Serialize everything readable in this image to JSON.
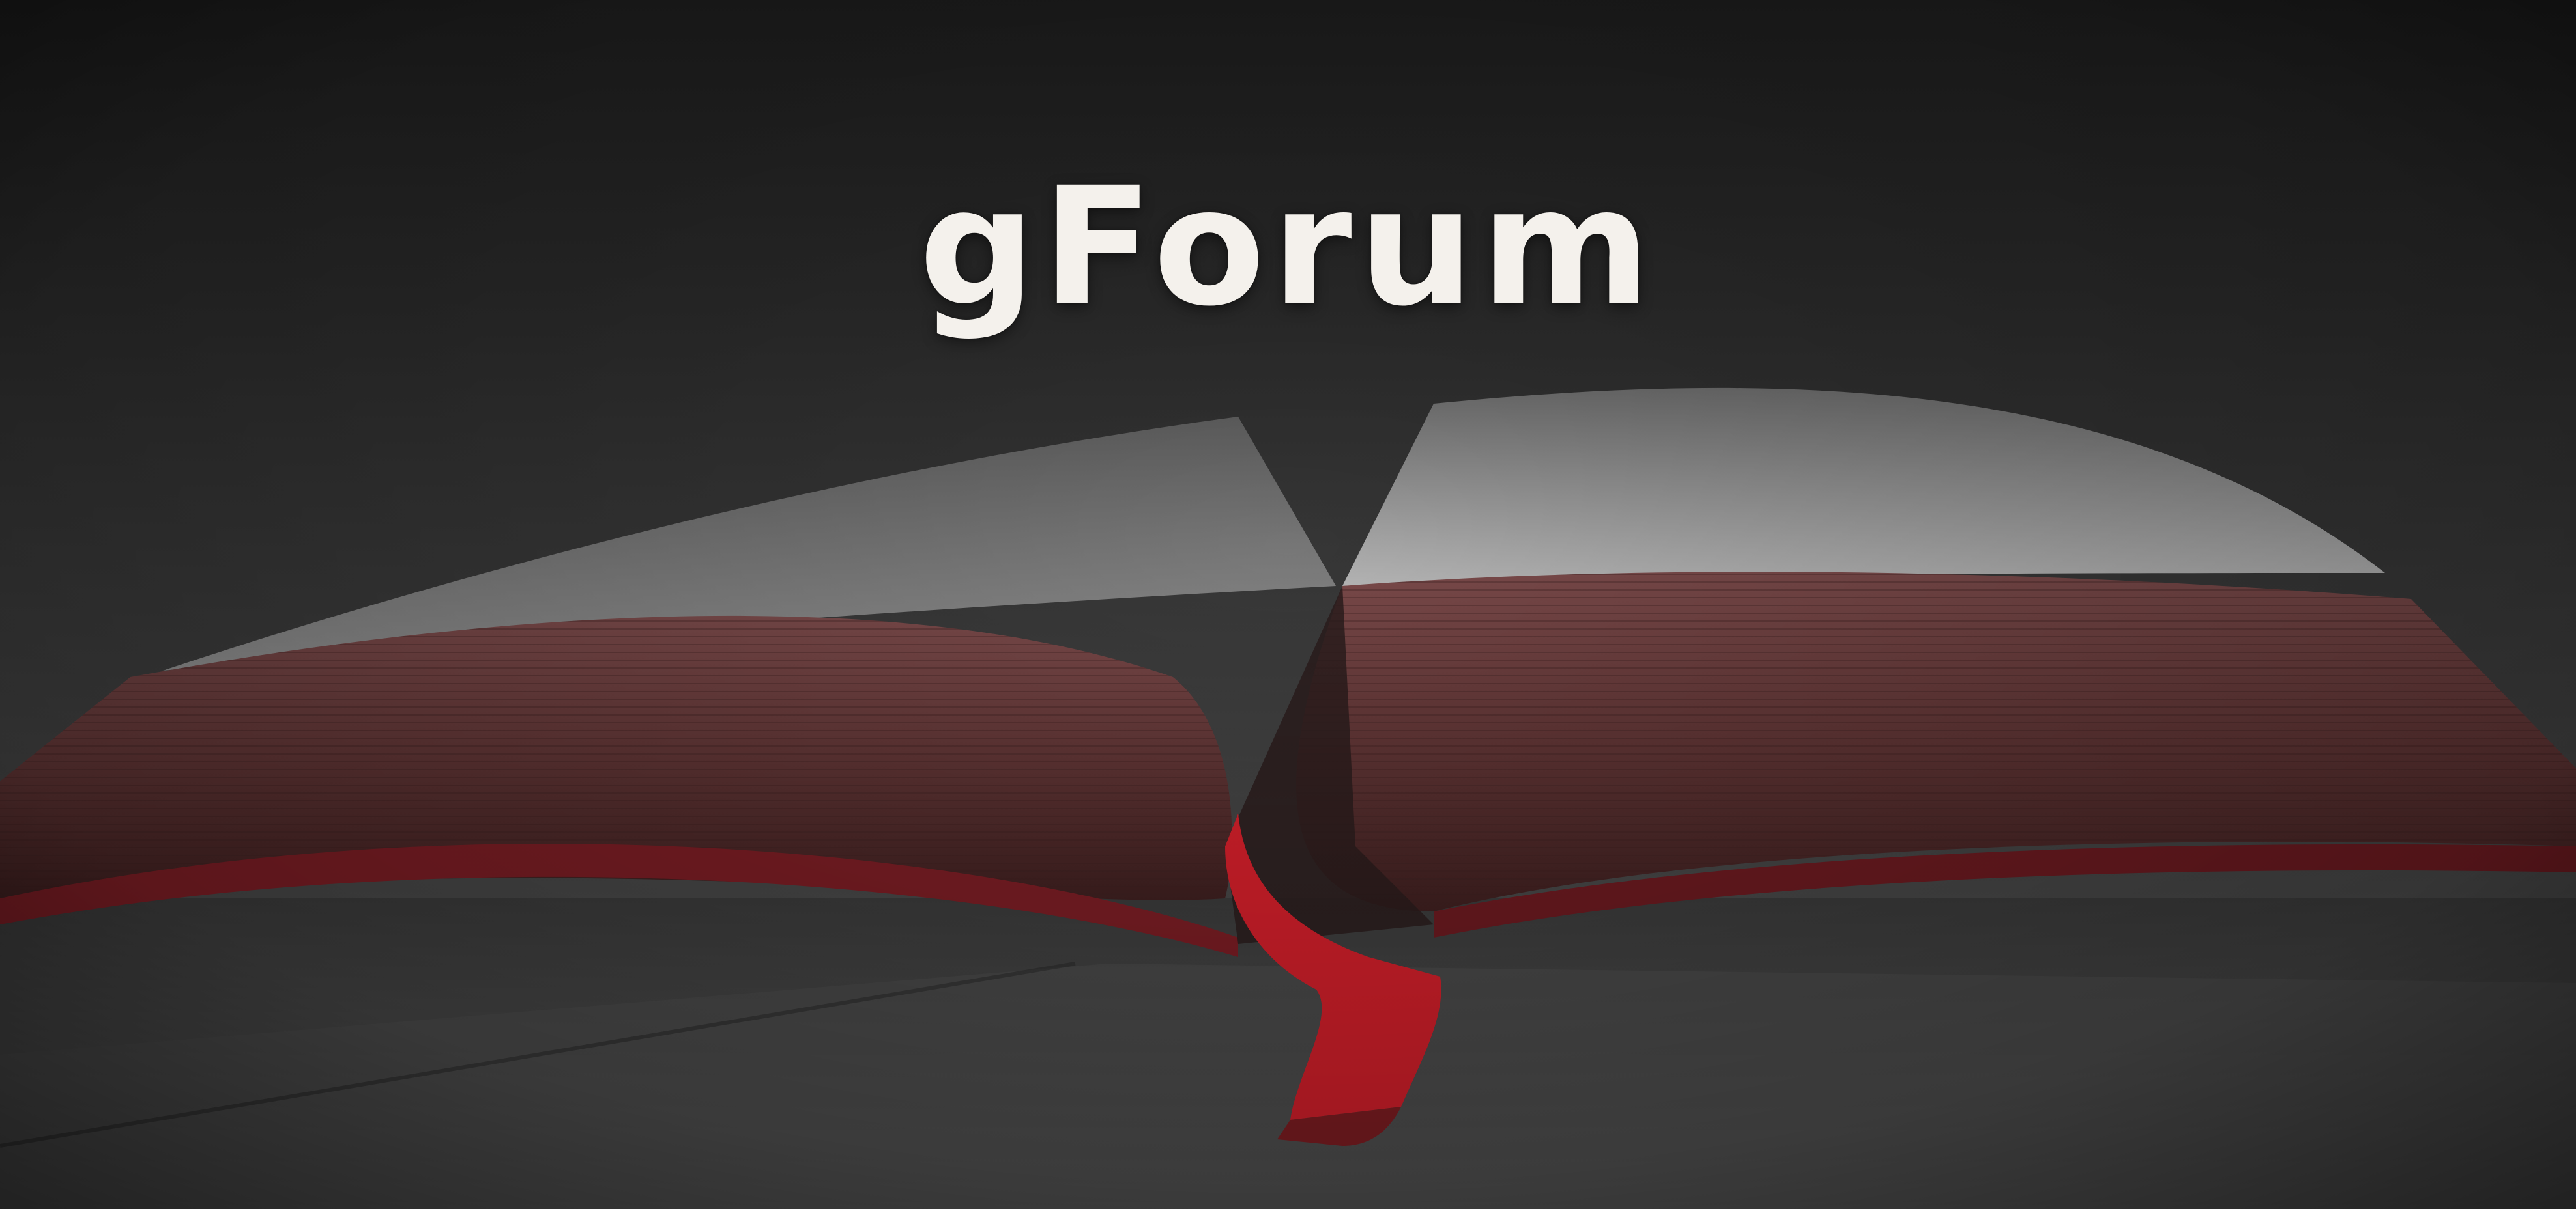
{
  "hero": {
    "title": "gForum",
    "image_subject": "open-book-with-red-ribbon",
    "colors": {
      "title": "#f4f1ec",
      "page_edges": "#6a3a3a",
      "ribbon": "#d11f2a",
      "background_dark": "#1e1e1e",
      "table": "#4a4a4a"
    }
  }
}
